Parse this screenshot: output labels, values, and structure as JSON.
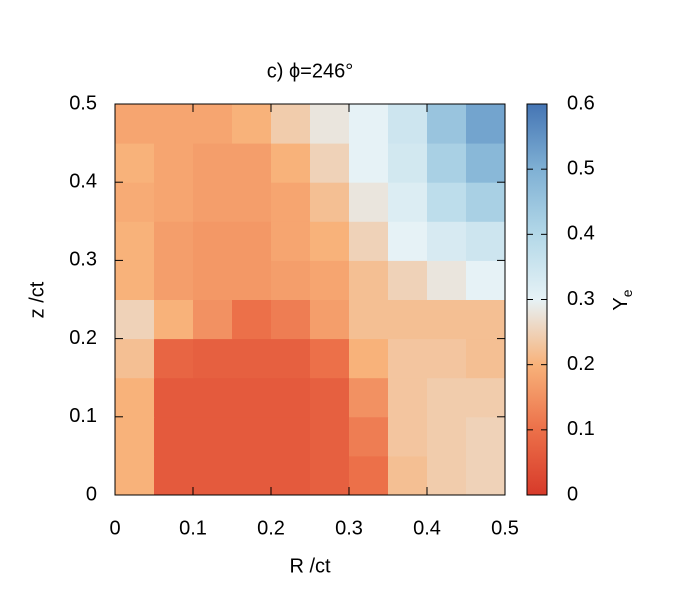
{
  "chart_data": {
    "type": "heatmap",
    "title": "c) ϕ=246°",
    "x_label": "R /ct",
    "y_label": "z /ct",
    "colorbar_label": {
      "text": "Y",
      "subscript": "e"
    },
    "x_bins": [
      0,
      0.05,
      0.1,
      0.15,
      0.2,
      0.25,
      0.3,
      0.35,
      0.4,
      0.45,
      0.5
    ],
    "y_bins": [
      0,
      0.05,
      0.1,
      0.15,
      0.2,
      0.25,
      0.3,
      0.35,
      0.4,
      0.45,
      0.5
    ],
    "z": [
      [
        0.2,
        0.06,
        0.06,
        0.06,
        0.06,
        0.07,
        0.1,
        0.22,
        0.24,
        0.25
      ],
      [
        0.2,
        0.06,
        0.06,
        0.06,
        0.06,
        0.07,
        0.12,
        0.23,
        0.24,
        0.25
      ],
      [
        0.2,
        0.06,
        0.06,
        0.06,
        0.06,
        0.07,
        0.15,
        0.23,
        0.24,
        0.24
      ],
      [
        0.22,
        0.08,
        0.07,
        0.07,
        0.07,
        0.1,
        0.2,
        0.23,
        0.23,
        0.22
      ],
      [
        0.25,
        0.2,
        0.15,
        0.1,
        0.12,
        0.17,
        0.22,
        0.22,
        0.22,
        0.22
      ],
      [
        0.2,
        0.17,
        0.16,
        0.16,
        0.17,
        0.18,
        0.22,
        0.25,
        0.28,
        0.3
      ],
      [
        0.2,
        0.17,
        0.16,
        0.16,
        0.18,
        0.2,
        0.25,
        0.3,
        0.33,
        0.35
      ],
      [
        0.19,
        0.18,
        0.17,
        0.17,
        0.18,
        0.22,
        0.28,
        0.32,
        0.38,
        0.42
      ],
      [
        0.2,
        0.18,
        0.17,
        0.17,
        0.2,
        0.25,
        0.3,
        0.34,
        0.42,
        0.48
      ],
      [
        0.18,
        0.18,
        0.18,
        0.2,
        0.24,
        0.28,
        0.3,
        0.35,
        0.45,
        0.52
      ]
    ],
    "xlim": [
      0,
      0.5
    ],
    "xticks": [
      0,
      0.1,
      0.2,
      0.3,
      0.4,
      0.5
    ],
    "ylim": [
      0,
      0.5
    ],
    "yticks": [
      0,
      0.1,
      0.2,
      0.3,
      0.4,
      0.5
    ],
    "clim": [
      0,
      0.6
    ],
    "cticks": [
      0,
      0.1,
      0.2,
      0.3,
      0.4,
      0.5,
      0.6
    ],
    "colormap": [
      "#d73a2a",
      "#ec7049",
      "#f8b27a",
      "#e6f2f6",
      "#b3d8e8",
      "#7fb0d4",
      "#4575b4"
    ]
  }
}
